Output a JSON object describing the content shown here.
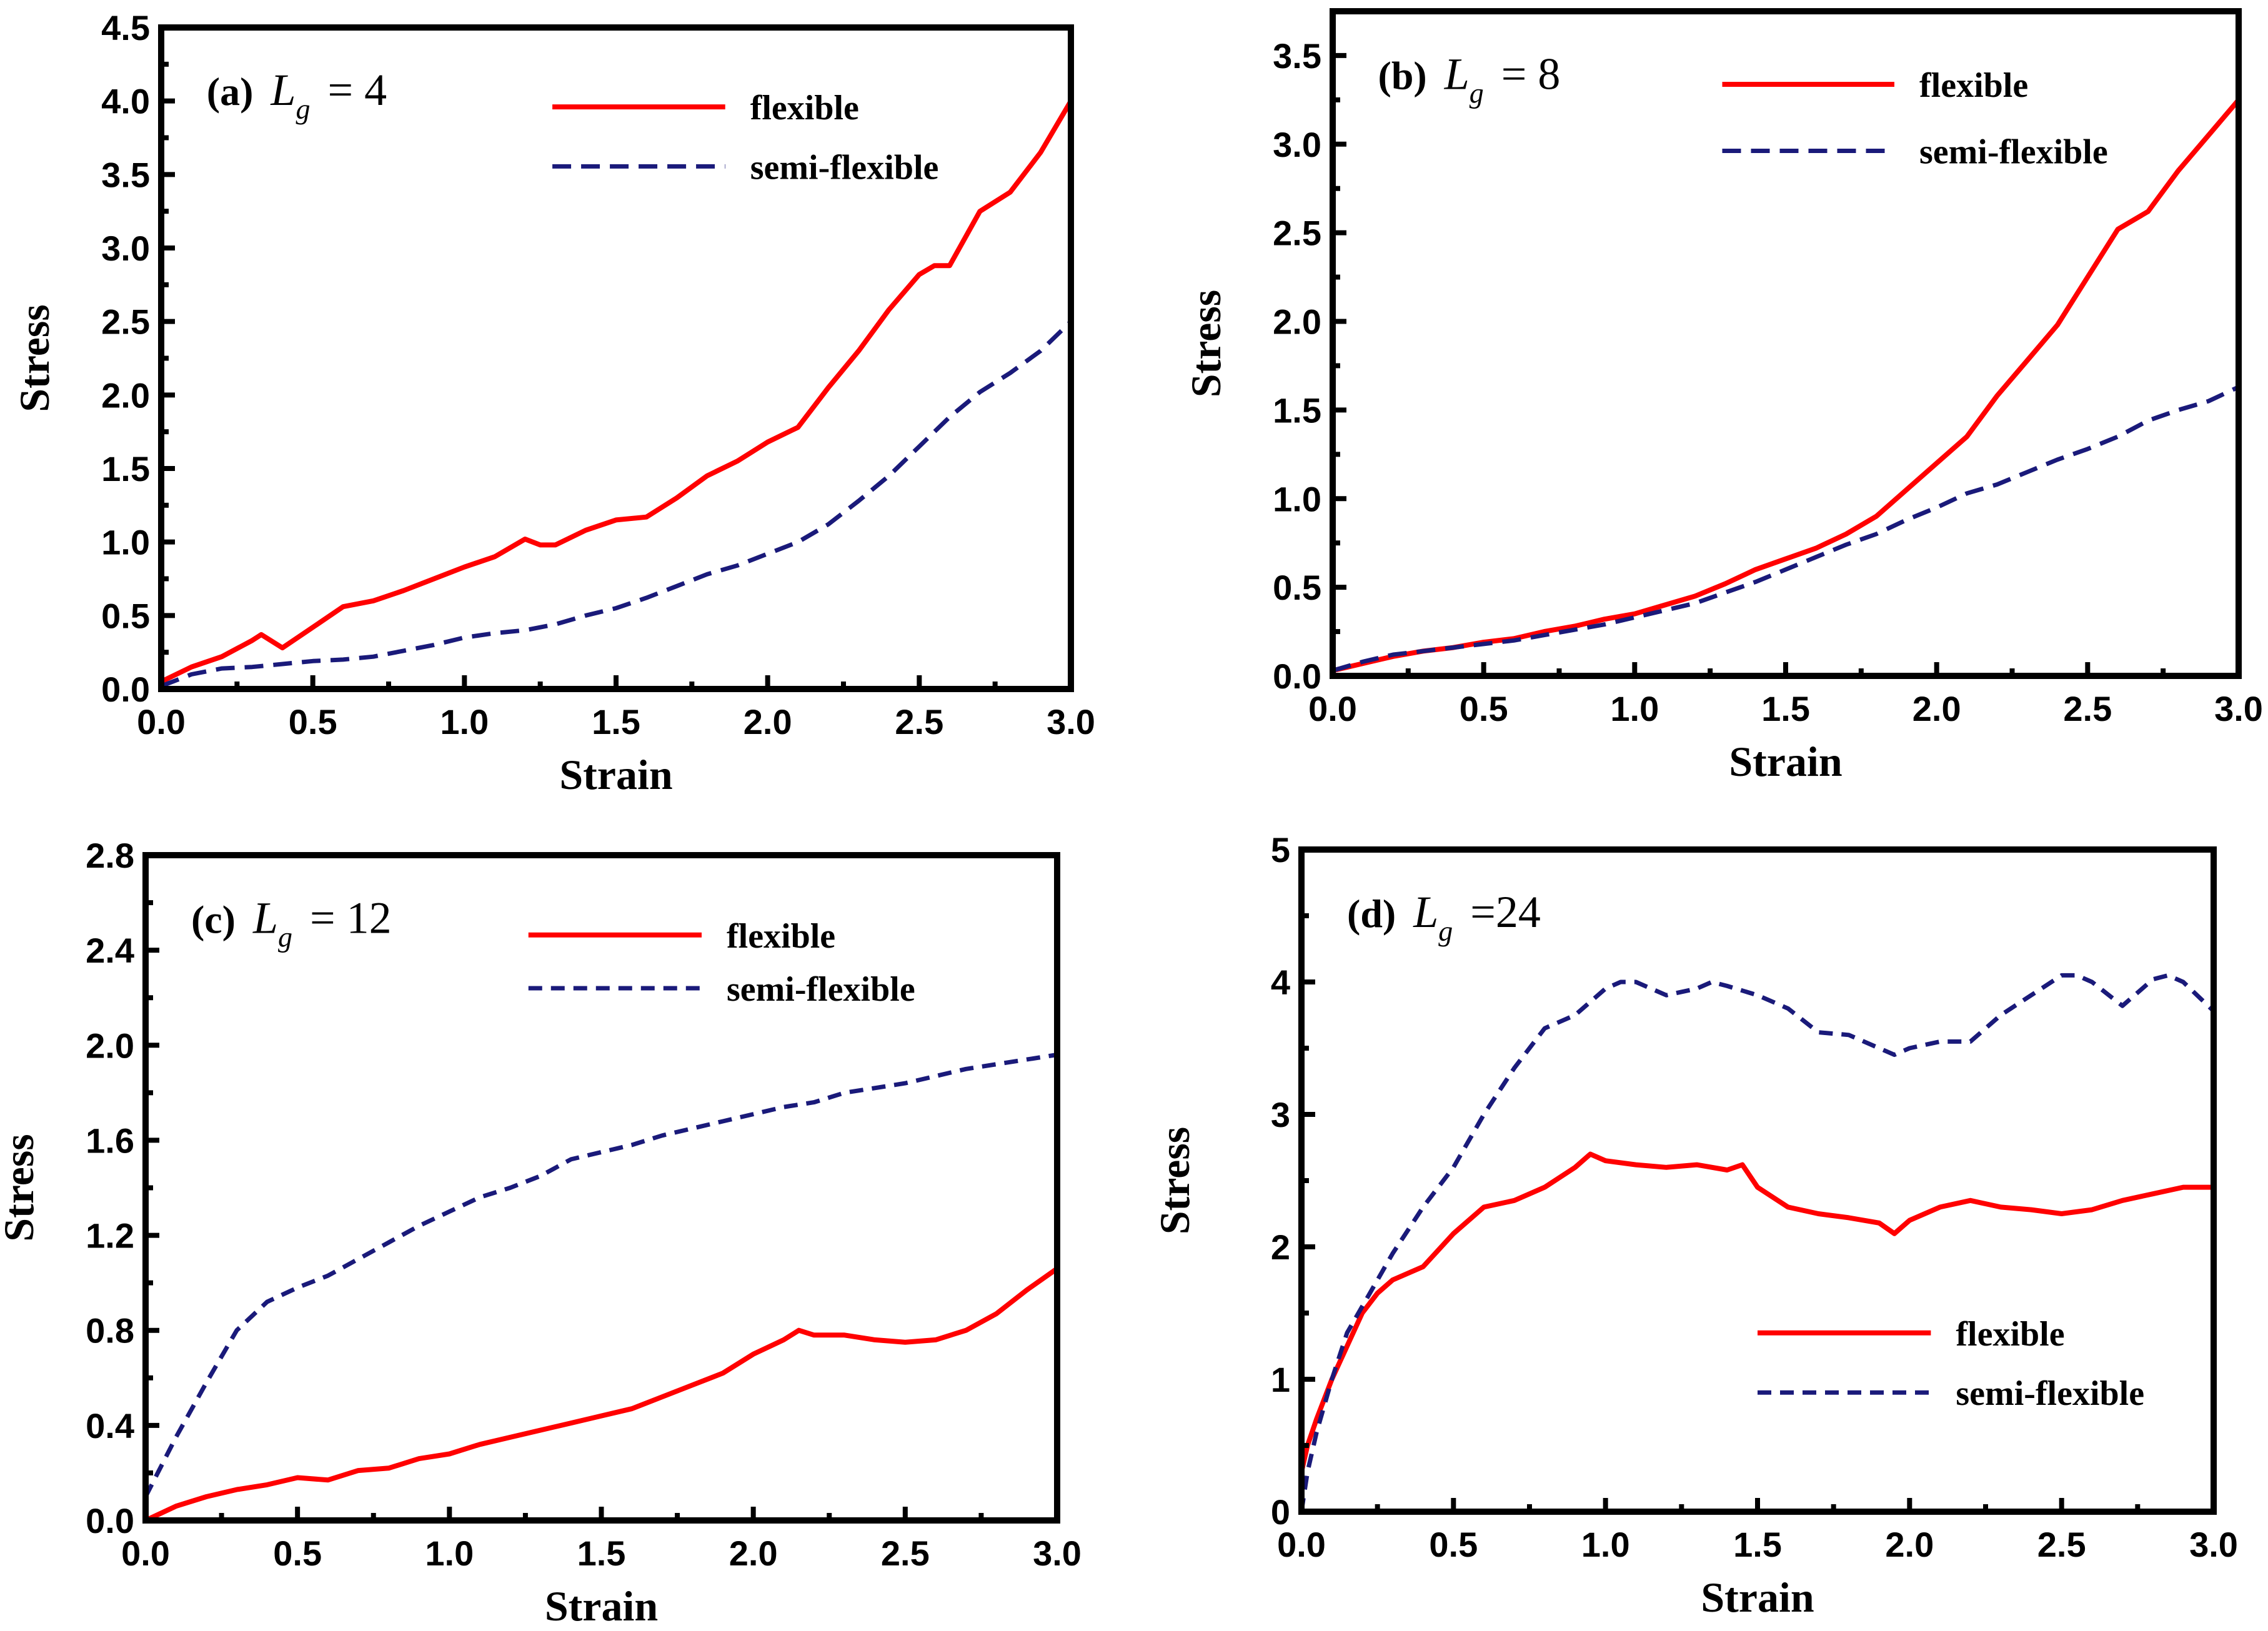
{
  "figure": {
    "colors": {
      "flexible": "#ff0000",
      "semi_flexible": "#1a1a7a"
    }
  },
  "chart_data": [
    {
      "type": "line",
      "panel_id": "a",
      "panel_label": "(a)",
      "annotation": {
        "var": "L",
        "sub": "g",
        "rest": " = 4"
      },
      "xlabel": "Strain",
      "ylabel": "Stress",
      "xlim": [
        0,
        3.0
      ],
      "ylim": [
        0,
        4.5
      ],
      "xticks": [
        "0.0",
        "0.5",
        "1.0",
        "1.5",
        "2.0",
        "2.5",
        "3.0"
      ],
      "yticks": [
        "0.0",
        "0.5",
        "1.0",
        "1.5",
        "2.0",
        "2.5",
        "3.0",
        "3.5",
        "4.0",
        "4.5"
      ],
      "legend_position": "top-right",
      "series": [
        {
          "name": "flexible",
          "style": "solid",
          "color": "#ff0000",
          "x": [
            0,
            0.1,
            0.2,
            0.3,
            0.33,
            0.4,
            0.5,
            0.6,
            0.7,
            0.8,
            0.9,
            1.0,
            1.1,
            1.2,
            1.25,
            1.3,
            1.4,
            1.5,
            1.6,
            1.7,
            1.8,
            1.9,
            2.0,
            2.1,
            2.2,
            2.3,
            2.4,
            2.5,
            2.55,
            2.6,
            2.7,
            2.8,
            2.9,
            3.0
          ],
          "y": [
            0.05,
            0.15,
            0.22,
            0.33,
            0.37,
            0.28,
            0.42,
            0.56,
            0.6,
            0.67,
            0.75,
            0.83,
            0.9,
            1.02,
            0.98,
            0.98,
            1.08,
            1.15,
            1.17,
            1.3,
            1.45,
            1.55,
            1.68,
            1.78,
            2.05,
            2.3,
            2.58,
            2.82,
            2.88,
            2.88,
            3.25,
            3.38,
            3.65,
            4.0
          ]
        },
        {
          "name": "semi-flexible",
          "style": "dashed",
          "color": "#1a1a7a",
          "x": [
            0,
            0.1,
            0.2,
            0.3,
            0.4,
            0.5,
            0.6,
            0.7,
            0.8,
            0.9,
            1.0,
            1.1,
            1.2,
            1.3,
            1.4,
            1.5,
            1.6,
            1.7,
            1.8,
            1.9,
            2.0,
            2.1,
            2.2,
            2.3,
            2.4,
            2.5,
            2.6,
            2.7,
            2.8,
            2.9,
            3.0
          ],
          "y": [
            0.02,
            0.1,
            0.14,
            0.15,
            0.17,
            0.19,
            0.2,
            0.22,
            0.26,
            0.3,
            0.35,
            0.38,
            0.4,
            0.44,
            0.5,
            0.55,
            0.62,
            0.7,
            0.78,
            0.84,
            0.92,
            1.0,
            1.12,
            1.28,
            1.45,
            1.65,
            1.85,
            2.02,
            2.15,
            2.3,
            2.5
          ]
        }
      ]
    },
    {
      "type": "line",
      "panel_id": "b",
      "panel_label": "(b)",
      "annotation": {
        "var": "L",
        "sub": "g",
        "rest": " = 8"
      },
      "xlabel": "Strain",
      "ylabel": "Stress",
      "xlim": [
        0,
        3.0
      ],
      "ylim": [
        0,
        3.75
      ],
      "xticks": [
        "0.0",
        "0.5",
        "1.0",
        "1.5",
        "2.0",
        "2.5",
        "3.0"
      ],
      "yticks": [
        "0.0",
        "0.5",
        "1.0",
        "1.5",
        "2.0",
        "2.5",
        "3.0",
        "3.5"
      ],
      "legend_position": "top-right",
      "series": [
        {
          "name": "flexible",
          "style": "solid",
          "color": "#ff0000",
          "x": [
            0,
            0.1,
            0.2,
            0.3,
            0.4,
            0.5,
            0.6,
            0.7,
            0.8,
            0.9,
            1.0,
            1.1,
            1.2,
            1.3,
            1.4,
            1.5,
            1.6,
            1.7,
            1.8,
            1.9,
            2.0,
            2.1,
            2.2,
            2.3,
            2.4,
            2.5,
            2.6,
            2.7,
            2.8,
            2.9,
            3.0
          ],
          "y": [
            0.03,
            0.07,
            0.11,
            0.14,
            0.16,
            0.19,
            0.21,
            0.25,
            0.28,
            0.32,
            0.35,
            0.4,
            0.45,
            0.52,
            0.6,
            0.66,
            0.72,
            0.8,
            0.9,
            1.05,
            1.2,
            1.35,
            1.58,
            1.78,
            1.98,
            2.25,
            2.52,
            2.62,
            2.85,
            3.05,
            3.25
          ]
        },
        {
          "name": "semi-flexible",
          "style": "dashed",
          "color": "#1a1a7a",
          "x": [
            0,
            0.1,
            0.2,
            0.3,
            0.4,
            0.5,
            0.6,
            0.7,
            0.8,
            0.9,
            1.0,
            1.1,
            1.2,
            1.3,
            1.4,
            1.5,
            1.6,
            1.7,
            1.8,
            1.9,
            2.0,
            2.1,
            2.2,
            2.3,
            2.4,
            2.5,
            2.6,
            2.7,
            2.8,
            2.9,
            3.0
          ],
          "y": [
            0.03,
            0.08,
            0.12,
            0.14,
            0.16,
            0.18,
            0.2,
            0.23,
            0.26,
            0.29,
            0.33,
            0.37,
            0.41,
            0.47,
            0.53,
            0.6,
            0.67,
            0.74,
            0.8,
            0.88,
            0.95,
            1.03,
            1.08,
            1.15,
            1.22,
            1.28,
            1.35,
            1.44,
            1.5,
            1.55,
            1.63
          ]
        }
      ]
    },
    {
      "type": "line",
      "panel_id": "c",
      "panel_label": "(c)",
      "annotation": {
        "var": "L",
        "sub": "g",
        "rest": " = 12"
      },
      "xlabel": "Strain",
      "ylabel": "Stress",
      "xlim": [
        0,
        3.0
      ],
      "ylim": [
        0,
        2.8
      ],
      "xticks": [
        "0.0",
        "0.5",
        "1.0",
        "1.5",
        "2.0",
        "2.5",
        "3.0"
      ],
      "yticks": [
        "0.0",
        "0.4",
        "0.8",
        "1.2",
        "1.6",
        "2.0",
        "2.4",
        "2.8"
      ],
      "legend_position": "top-right",
      "series": [
        {
          "name": "flexible",
          "style": "solid",
          "color": "#ff0000",
          "x": [
            0,
            0.1,
            0.2,
            0.3,
            0.4,
            0.5,
            0.6,
            0.7,
            0.8,
            0.9,
            1.0,
            1.1,
            1.2,
            1.3,
            1.4,
            1.5,
            1.6,
            1.7,
            1.8,
            1.9,
            2.0,
            2.1,
            2.15,
            2.2,
            2.3,
            2.4,
            2.5,
            2.6,
            2.7,
            2.8,
            2.9,
            3.0
          ],
          "y": [
            0.0,
            0.06,
            0.1,
            0.13,
            0.15,
            0.18,
            0.17,
            0.21,
            0.22,
            0.26,
            0.28,
            0.32,
            0.35,
            0.38,
            0.41,
            0.44,
            0.47,
            0.52,
            0.57,
            0.62,
            0.7,
            0.76,
            0.8,
            0.78,
            0.78,
            0.76,
            0.75,
            0.76,
            0.8,
            0.87,
            0.97,
            1.06
          ]
        },
        {
          "name": "semi-flexible",
          "style": "dashed",
          "color": "#1a1a7a",
          "x": [
            0,
            0.1,
            0.2,
            0.3,
            0.4,
            0.5,
            0.6,
            0.7,
            0.8,
            0.9,
            1.0,
            1.1,
            1.2,
            1.3,
            1.4,
            1.5,
            1.6,
            1.7,
            1.8,
            1.9,
            2.0,
            2.1,
            2.2,
            2.3,
            2.4,
            2.5,
            2.6,
            2.7,
            2.8,
            2.9,
            3.0
          ],
          "y": [
            0.1,
            0.35,
            0.58,
            0.8,
            0.92,
            0.98,
            1.03,
            1.1,
            1.17,
            1.24,
            1.3,
            1.36,
            1.4,
            1.45,
            1.52,
            1.55,
            1.58,
            1.62,
            1.65,
            1.68,
            1.71,
            1.74,
            1.76,
            1.8,
            1.82,
            1.84,
            1.87,
            1.9,
            1.92,
            1.94,
            1.96
          ]
        }
      ]
    },
    {
      "type": "line",
      "panel_id": "d",
      "panel_label": "(d)",
      "annotation": {
        "var": "L",
        "sub": "g",
        "rest": " =24"
      },
      "xlabel": "Strain",
      "ylabel": "Stress",
      "xlim": [
        0,
        3.0
      ],
      "ylim": [
        0,
        5
      ],
      "xticks": [
        "0.0",
        "0.5",
        "1.0",
        "1.5",
        "2.0",
        "2.5",
        "3.0"
      ],
      "yticks": [
        "0",
        "1",
        "2",
        "3",
        "4",
        "5"
      ],
      "legend_position": "bottom-right",
      "series": [
        {
          "name": "flexible",
          "style": "solid",
          "color": "#ff0000",
          "x": [
            0,
            0.02,
            0.05,
            0.1,
            0.15,
            0.2,
            0.25,
            0.3,
            0.4,
            0.5,
            0.6,
            0.7,
            0.8,
            0.9,
            0.95,
            1.0,
            1.1,
            1.2,
            1.3,
            1.4,
            1.45,
            1.5,
            1.6,
            1.7,
            1.8,
            1.9,
            1.95,
            2.0,
            2.1,
            2.2,
            2.3,
            2.4,
            2.5,
            2.6,
            2.7,
            2.8,
            2.9,
            3.0
          ],
          "y": [
            0.3,
            0.5,
            0.7,
            1.0,
            1.25,
            1.5,
            1.65,
            1.75,
            1.85,
            2.1,
            2.3,
            2.35,
            2.45,
            2.6,
            2.7,
            2.65,
            2.62,
            2.6,
            2.62,
            2.58,
            2.62,
            2.45,
            2.3,
            2.25,
            2.22,
            2.18,
            2.1,
            2.2,
            2.3,
            2.35,
            2.3,
            2.28,
            2.25,
            2.28,
            2.35,
            2.4,
            2.45,
            2.45
          ]
        },
        {
          "name": "semi-flexible",
          "style": "dashed",
          "color": "#1a1a7a",
          "x": [
            0,
            0.02,
            0.05,
            0.1,
            0.15,
            0.2,
            0.25,
            0.3,
            0.4,
            0.5,
            0.6,
            0.7,
            0.8,
            0.9,
            1.0,
            1.05,
            1.1,
            1.2,
            1.3,
            1.35,
            1.4,
            1.5,
            1.6,
            1.7,
            1.8,
            1.9,
            1.95,
            2.0,
            2.1,
            2.2,
            2.3,
            2.4,
            2.5,
            2.55,
            2.6,
            2.7,
            2.8,
            2.85,
            2.9,
            3.0
          ],
          "y": [
            0.0,
            0.3,
            0.6,
            1.0,
            1.35,
            1.55,
            1.75,
            1.95,
            2.3,
            2.6,
            3.0,
            3.35,
            3.65,
            3.75,
            3.95,
            4.0,
            4.0,
            3.9,
            3.95,
            4.0,
            3.97,
            3.9,
            3.8,
            3.62,
            3.6,
            3.5,
            3.45,
            3.5,
            3.55,
            3.55,
            3.75,
            3.9,
            4.05,
            4.05,
            4.0,
            3.82,
            4.02,
            4.05,
            4.0,
            3.78
          ]
        }
      ]
    }
  ]
}
